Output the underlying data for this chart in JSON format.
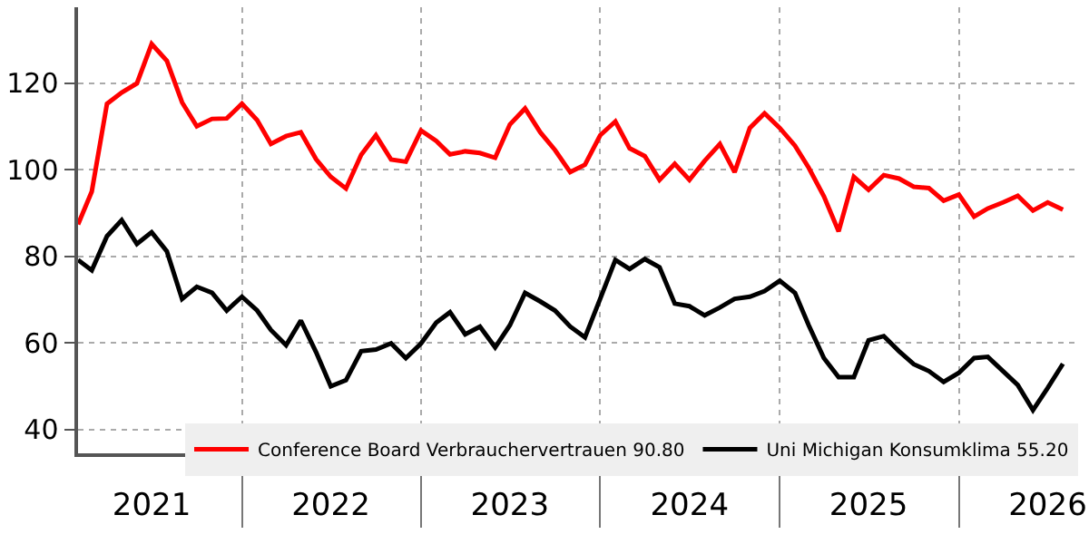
{
  "chart_data": {
    "type": "line",
    "x": [
      "2021-02",
      "2021-03",
      "2021-04",
      "2021-05",
      "2021-06",
      "2021-07",
      "2021-08",
      "2021-09",
      "2021-10",
      "2021-11",
      "2021-12",
      "2022-01",
      "2022-02",
      "2022-03",
      "2022-04",
      "2022-05",
      "2022-06",
      "2022-07",
      "2022-08",
      "2022-09",
      "2022-10",
      "2022-11",
      "2022-12",
      "2023-01",
      "2023-02",
      "2023-03",
      "2023-04",
      "2023-05",
      "2023-06",
      "2023-07",
      "2023-08",
      "2023-09",
      "2023-10",
      "2023-11",
      "2023-12",
      "2024-01",
      "2024-02",
      "2024-03",
      "2024-04",
      "2024-05",
      "2024-06",
      "2024-07",
      "2024-08",
      "2024-09",
      "2024-10",
      "2024-11",
      "2024-12",
      "2025-01",
      "2025-02",
      "2025-03",
      "2025-04",
      "2025-05",
      "2025-06",
      "2025-07",
      "2025-08",
      "2025-09",
      "2025-10",
      "2025-11",
      "2025-12",
      "2026-01",
      "2026-02",
      "2026-03",
      "2026-04",
      "2026-05",
      "2026-06",
      "2026-07",
      "2026-08"
    ],
    "series": [
      {
        "name": "Conference Board Verbrauchervertrauen 90.80",
        "color": "#ff0000",
        "values": [
          87.4,
          95.0,
          115.3,
          117.9,
          120.0,
          129.1,
          125.2,
          115.6,
          110.1,
          111.8,
          111.9,
          115.3,
          111.5,
          106.0,
          107.8,
          108.7,
          102.5,
          98.4,
          95.7,
          103.5,
          108.0,
          102.4,
          101.9,
          109.1,
          106.7,
          103.6,
          104.3,
          103.9,
          102.8,
          110.5,
          114.2,
          108.7,
          104.6,
          99.5,
          101.2,
          108.0,
          111.2,
          105.0,
          103.2,
          97.7,
          101.4,
          97.7,
          102.1,
          106.0,
          99.5,
          109.7,
          113.1,
          109.7,
          105.6,
          100.5,
          93.9,
          85.8,
          98.4,
          95.4,
          98.8,
          98.0,
          96.1,
          95.8,
          92.9,
          94.3,
          89.2,
          91.1,
          92.5,
          94.0,
          90.6,
          92.5,
          90.8
        ]
      },
      {
        "name": "Uni Michigan Konsumklima 55.20",
        "color": "#000000",
        "values": [
          79.2,
          76.8,
          84.7,
          88.4,
          82.9,
          85.6,
          81.2,
          70.2,
          73.0,
          71.6,
          67.5,
          70.7,
          67.5,
          63.0,
          59.5,
          65.2,
          57.9,
          50.0,
          51.4,
          58.1,
          58.5,
          59.9,
          56.5,
          59.9,
          64.7,
          67.1,
          62.0,
          63.8,
          59.0,
          64.1,
          71.6,
          69.6,
          67.5,
          63.8,
          61.3,
          70.2,
          79.2,
          77.1,
          79.4,
          77.5,
          69.1,
          68.5,
          66.4,
          68.2,
          70.2,
          70.7,
          72.0,
          74.4,
          71.6,
          64.1,
          56.5,
          52.1,
          52.1,
          60.6,
          61.6,
          58.1,
          55.1,
          53.5,
          51.0,
          53.1,
          56.5,
          56.8,
          53.5,
          50.3,
          44.5,
          49.6,
          55.2
        ]
      }
    ],
    "xlim": [
      "2021-02-01",
      "2026-09-01"
    ],
    "xticks": [
      {
        "value": "2021-07-01",
        "label": "2021"
      },
      {
        "value": "2022-01-01",
        "label": null
      },
      {
        "value": "2022-07-01",
        "label": "2022"
      },
      {
        "value": "2023-01-01",
        "label": null
      },
      {
        "value": "2023-07-01",
        "label": "2023"
      },
      {
        "value": "2024-01-01",
        "label": null
      },
      {
        "value": "2024-07-01",
        "label": "2024"
      },
      {
        "value": "2025-01-01",
        "label": null
      },
      {
        "value": "2025-07-01",
        "label": "2025"
      },
      {
        "value": "2026-01-01",
        "label": null
      },
      {
        "value": "2026-07-01",
        "label": "2026"
      }
    ],
    "ylim": [
      34.5,
      137.6
    ],
    "yticks": [
      40,
      60,
      80,
      100,
      120
    ],
    "grid": true,
    "legend": "bottom right",
    "line_style": "solid"
  }
}
